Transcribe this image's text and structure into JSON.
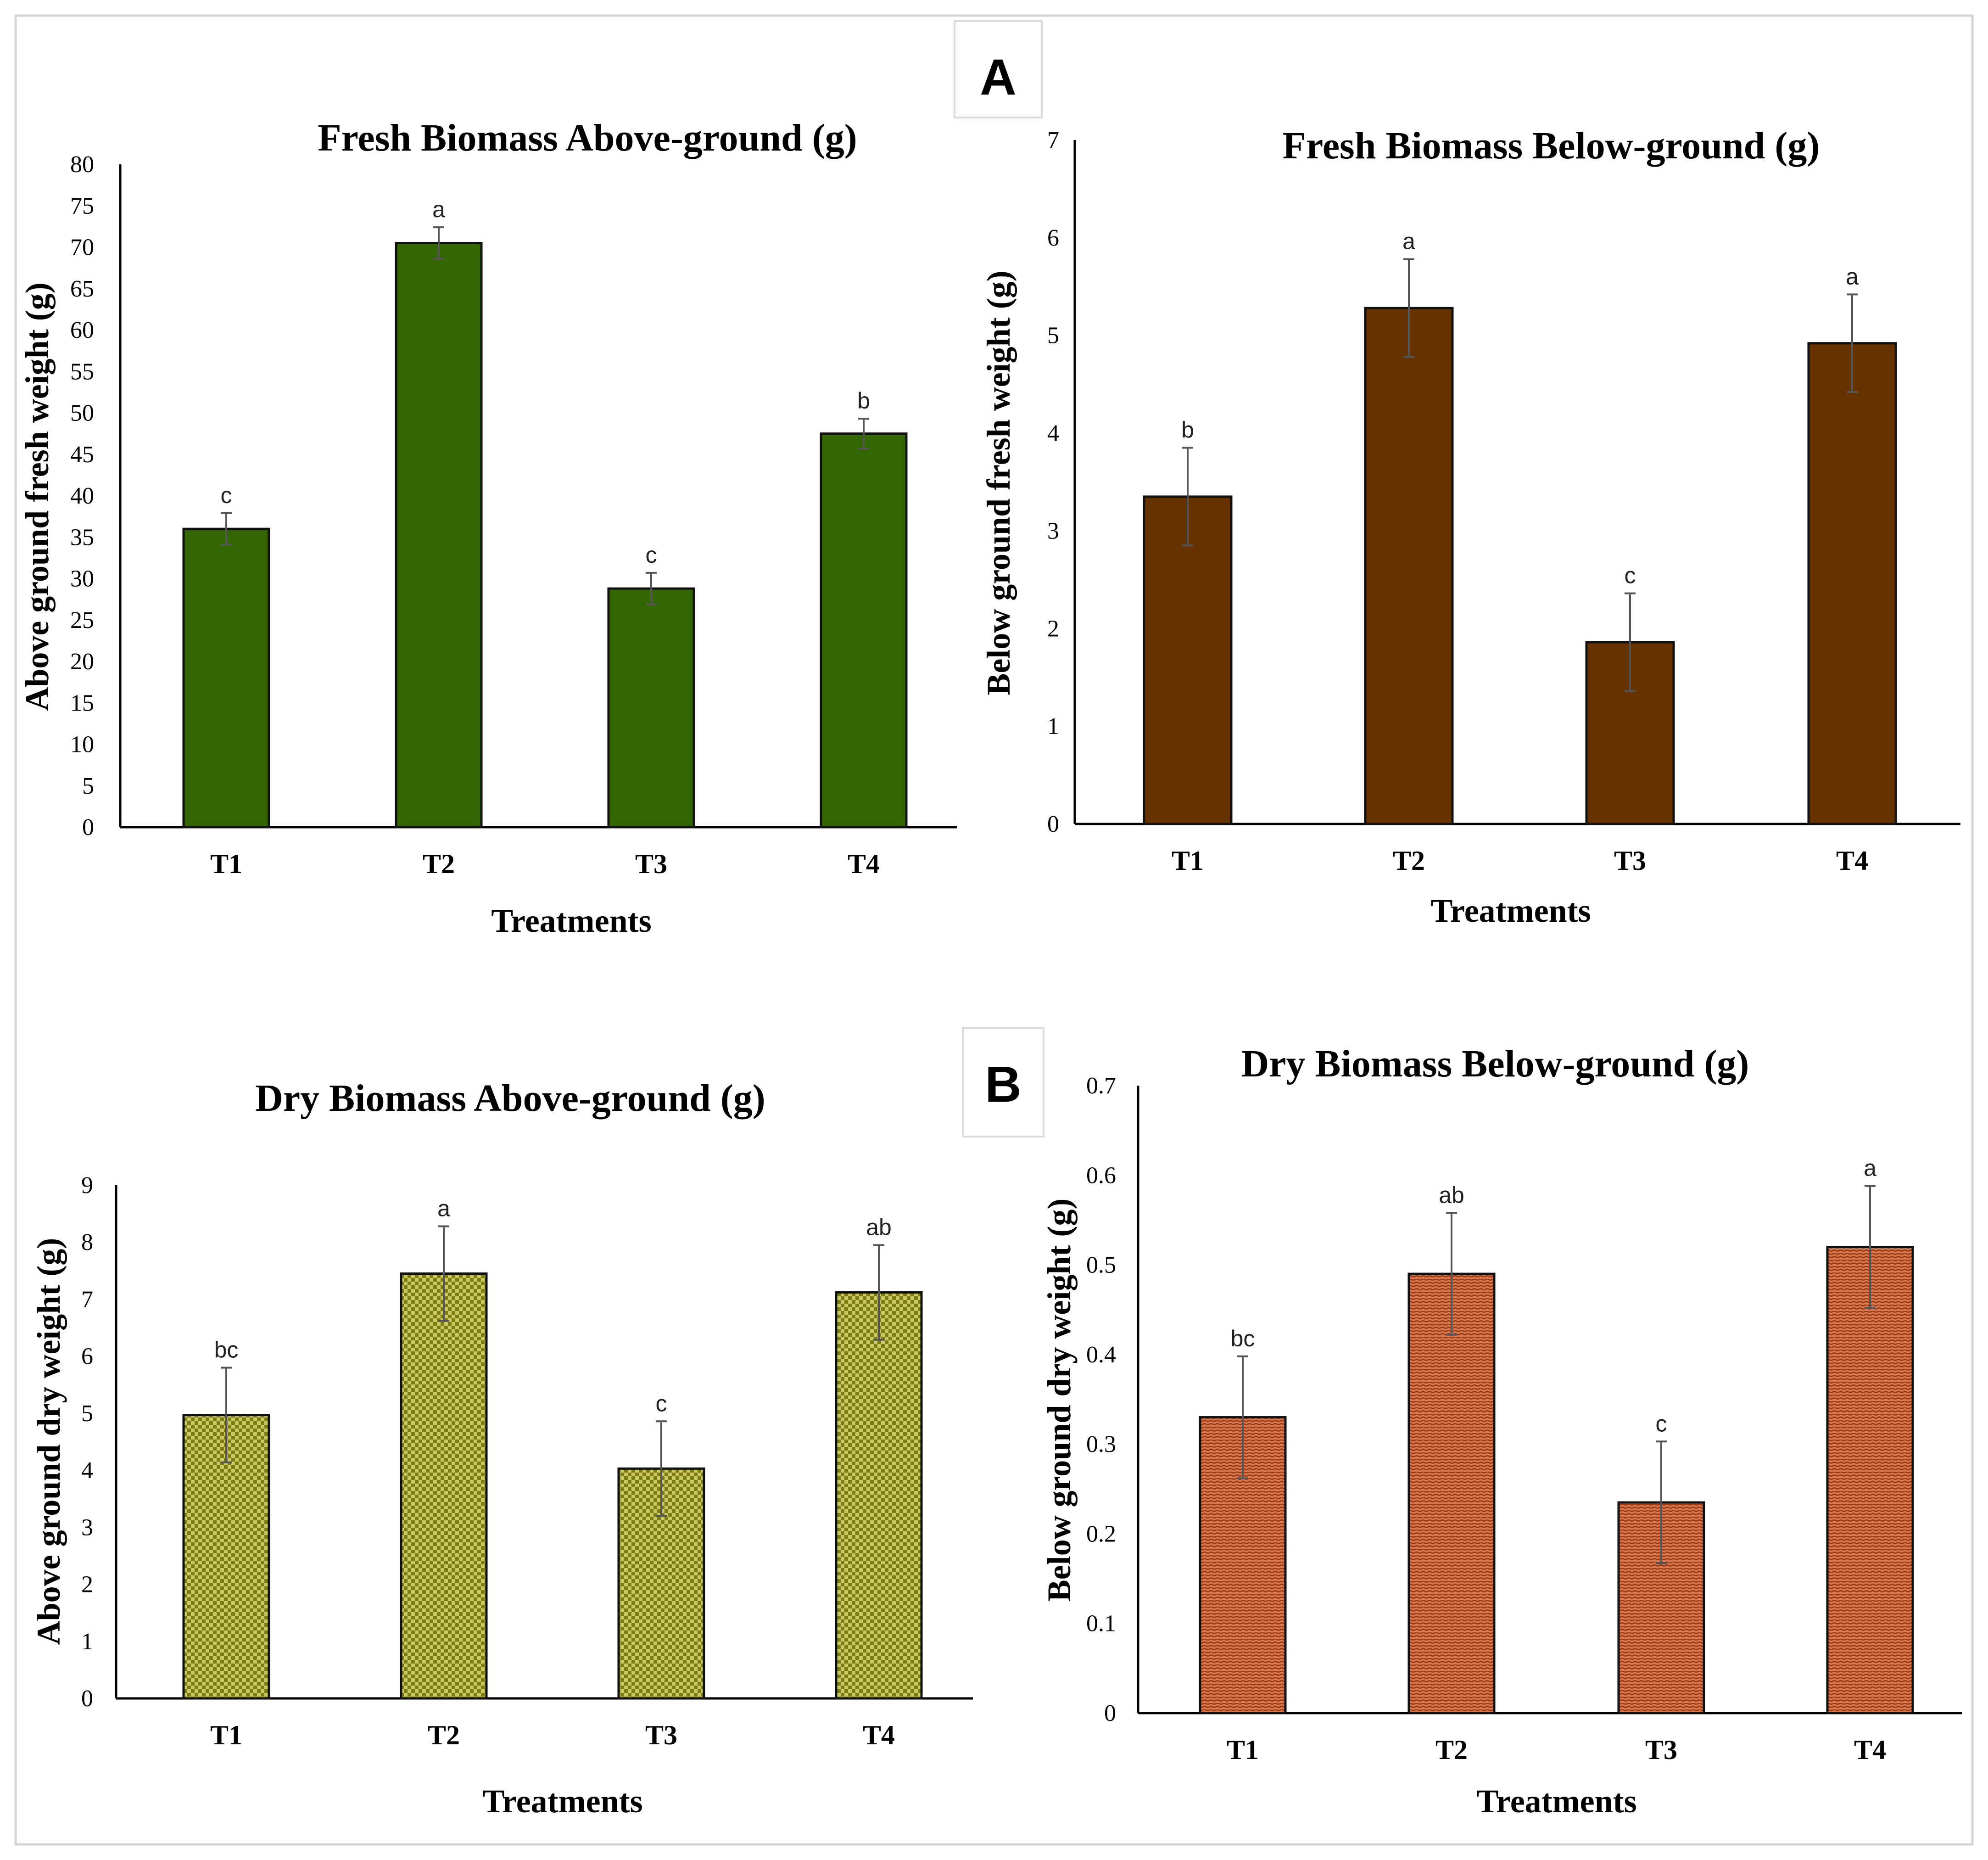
{
  "panels": [
    {
      "label": "A",
      "color": "#000000"
    },
    {
      "label": "B",
      "color": "#000000"
    }
  ],
  "chart_data": [
    {
      "type": "bar",
      "panel": "A",
      "title": "Fresh Biomass Above-ground  (g)",
      "xlabel": "Treatments",
      "ylabel": "Above ground fresh weight  (g)",
      "categories": [
        "T1",
        "T2",
        "T3",
        "T4"
      ],
      "values": [
        36,
        70.5,
        28.8,
        47.5
      ],
      "errors": [
        1.9,
        1.9,
        1.9,
        1.8
      ],
      "significance": [
        "c",
        "a",
        "c",
        "b"
      ],
      "ylim": [
        0,
        80
      ],
      "yticks": [
        "0",
        "5",
        "10",
        "15",
        "20",
        "25",
        "30",
        "35",
        "40",
        "45",
        "50",
        "55",
        "60",
        "65",
        "70",
        "75",
        "80"
      ],
      "bar_color": "#336600",
      "pattern": "solid"
    },
    {
      "type": "bar",
      "panel": "A",
      "title": "Fresh Biomass Below-ground  (g)",
      "xlabel": "Treatments",
      "ylabel": "Below ground fresh weight  (g)",
      "categories": [
        "T1",
        "T2",
        "T3",
        "T4"
      ],
      "values": [
        3.35,
        5.28,
        1.86,
        4.92
      ],
      "errors": [
        0.5,
        0.5,
        0.5,
        0.5
      ],
      "significance": [
        "b",
        "a",
        "c",
        "a"
      ],
      "ylim": [
        0,
        7
      ],
      "yticks": [
        "0",
        "1",
        "2",
        "3",
        "4",
        "5",
        "6",
        "7"
      ],
      "bar_color": "#663300",
      "pattern": "solid"
    },
    {
      "type": "bar",
      "panel": "B",
      "title": "Dry Biomass Above-ground (g)",
      "xlabel": "Treatments",
      "ylabel": "Above ground dry weight  (g)",
      "categories": [
        "T1",
        "T2",
        "T3",
        "T4"
      ],
      "values": [
        4.97,
        7.45,
        4.03,
        7.12
      ],
      "errors": [
        0.83,
        0.83,
        0.83,
        0.83
      ],
      "significance": [
        "bc",
        "a",
        "c",
        "ab"
      ],
      "ylim": [
        0,
        9
      ],
      "yticks": [
        "0",
        "1",
        "2",
        "3",
        "4",
        "5",
        "6",
        "7",
        "8",
        "9"
      ],
      "bar_color": "#8a8a14",
      "pattern": "checker"
    },
    {
      "type": "bar",
      "panel": "B",
      "title": "Dry Biomass Below-ground (g)",
      "xlabel": "Treatments",
      "ylabel": "Below ground dry weight  (g)",
      "categories": [
        "T1",
        "T2",
        "T3",
        "T4"
      ],
      "values": [
        0.33,
        0.49,
        0.235,
        0.52
      ],
      "errors": [
        0.068,
        0.068,
        0.068,
        0.068
      ],
      "significance": [
        "bc",
        "ab",
        "c",
        "a"
      ],
      "ylim": [
        0,
        0.7
      ],
      "yticks": [
        "0",
        "0.1",
        "0.2",
        "0.3",
        "0.4",
        "0.5",
        "0.6",
        "0.7"
      ],
      "bar_color": "#a8441c",
      "pattern": "weave"
    }
  ]
}
